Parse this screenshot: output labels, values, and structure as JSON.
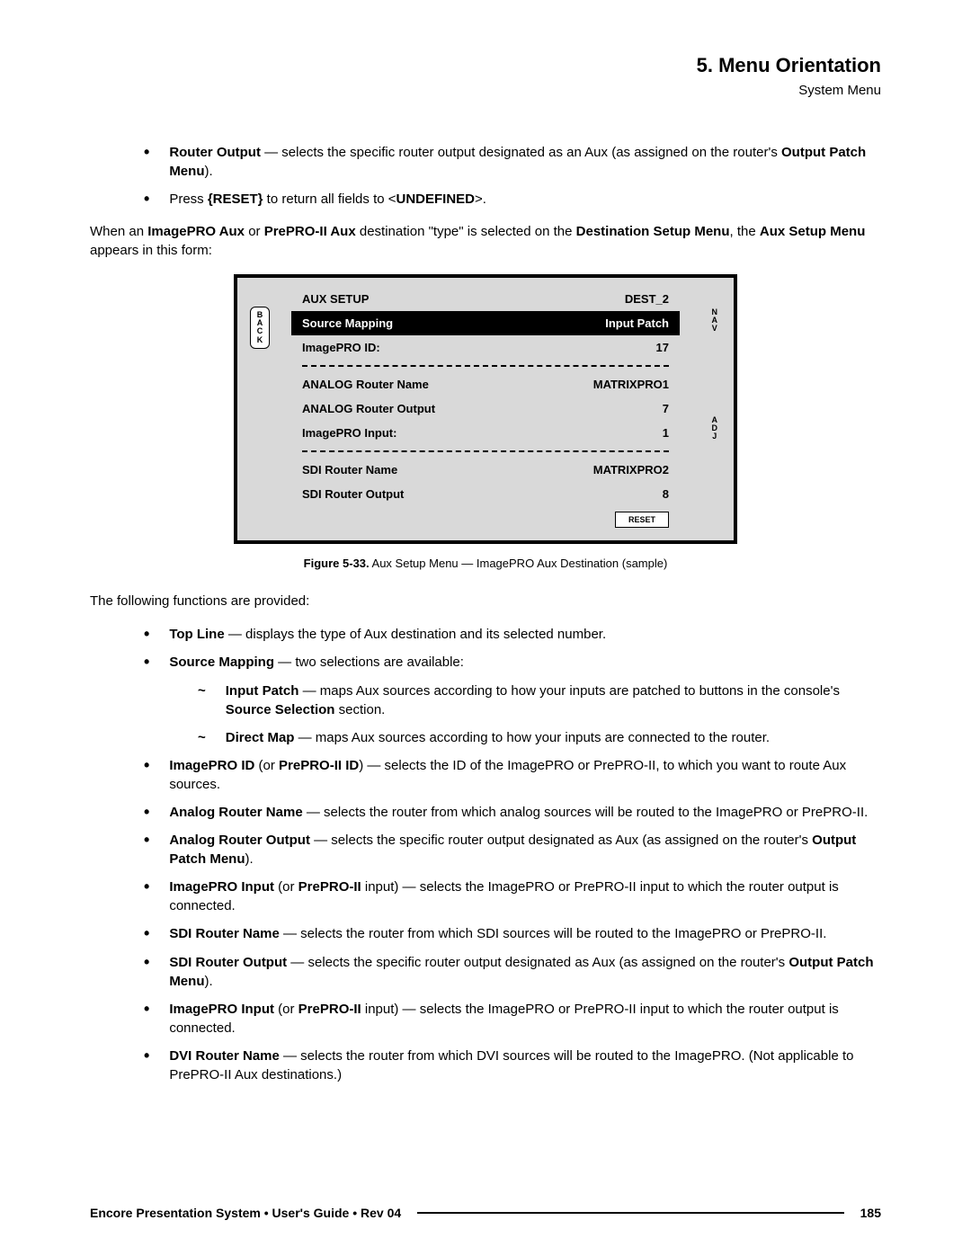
{
  "header": {
    "chapter": "5.  Menu Orientation",
    "section": "System Menu"
  },
  "intro_bullets": [
    {
      "bold1": "Router Output",
      "text1": " — selects the specific router output designated as an Aux (as assigned on the router's ",
      "bold2": "Output Patch Menu",
      "text2": ")."
    },
    {
      "plain_pre": "Press ",
      "bold1": "{RESET}",
      "text1": " to return all fields to <",
      "bold2": "UNDEFINED",
      "text2": ">."
    }
  ],
  "intro_para": {
    "p1": "When an ",
    "b1": "ImagePRO Aux",
    "p2": " or ",
    "b2": "PrePRO-II Aux",
    "p3": " destination \"type\" is selected on the ",
    "b3": "Destination Setup Menu",
    "p4": ", the ",
    "b4": "Aux Setup Menu",
    "p5": " appears in this form:"
  },
  "menu": {
    "back": "B\nA\nC\nK",
    "nav": "N\nA\nV",
    "adj": "A\nD\nJ",
    "rows": [
      {
        "left": "AUX SETUP",
        "right": "DEST_2",
        "inverted": false
      },
      {
        "left": "Source Mapping",
        "right": "Input Patch",
        "inverted": true
      },
      {
        "left": "ImagePRO ID:",
        "right": "17",
        "inverted": false
      },
      {
        "divider": true
      },
      {
        "left": "ANALOG Router Name",
        "right": "MATRIXPRO1",
        "inverted": false
      },
      {
        "left": "ANALOG Router Output",
        "right": "7",
        "inverted": false
      },
      {
        "left": "ImagePRO Input:",
        "right": "1",
        "inverted": false
      },
      {
        "divider": true
      },
      {
        "left": "SDI Router Name",
        "right": "MATRIXPRO2",
        "inverted": false
      },
      {
        "left": "SDI Router Output",
        "right": "8",
        "inverted": false
      }
    ],
    "reset": "RESET"
  },
  "figure_caption": {
    "b": "Figure 5-33.",
    "t": "  Aux Setup Menu — ImagePRO Aux Destination (sample)"
  },
  "functions_lead": "The following functions are provided:",
  "func_bullets": [
    {
      "b1": "Top Line",
      "t1": " — displays the type of Aux destination and its selected number."
    },
    {
      "b1": "Source Mapping",
      "t1": " — two selections are available:",
      "subs": [
        {
          "b1": "Input Patch",
          "t1": " — maps Aux sources according to how your inputs are patched to buttons in the console's ",
          "b2": "Source Selection",
          "t2": " section."
        },
        {
          "b1": "Direct Map",
          "t1": " — maps Aux sources according to how your inputs are connected to the router."
        }
      ]
    },
    {
      "b1": "ImagePRO ID",
      "t1": " (or ",
      "b2": "PrePRO-II ID",
      "t2": ") — selects the ID of the ImagePRO or PrePRO-II, to which you want to route Aux sources."
    },
    {
      "b1": "Analog Router Name",
      "t1": " — selects the router from which analog sources will be routed to the ImagePRO or PrePRO-II."
    },
    {
      "b1": "Analog Router Output",
      "t1": " — selects the specific router output designated as Aux (as assigned on the router's ",
      "b2": "Output Patch Menu",
      "t2": ")."
    },
    {
      "b1": "ImagePRO Input",
      "t1": " (or ",
      "b2": "PrePRO-II",
      "t2": " input) — selects the ImagePRO or PrePRO-II input to which the router output is connected."
    },
    {
      "b1": "SDI Router Name",
      "t1": " — selects the router from which SDI sources will be routed to the ImagePRO or PrePRO-II."
    },
    {
      "b1": "SDI Router Output",
      "t1": " — selects the specific router output designated as Aux (as assigned on the router's ",
      "b2": "Output Patch Menu",
      "t2": ")."
    },
    {
      "b1": "ImagePRO Input",
      "t1": " (or ",
      "b2": "PrePRO-II",
      "t2": " input) — selects the ImagePRO or PrePRO-II input to which the router output is connected."
    },
    {
      "b1": "DVI Router Name",
      "t1": " — selects the router from which DVI sources will be routed to the ImagePRO.  (Not applicable to PrePRO-II Aux destinations.)"
    }
  ],
  "footer": {
    "text": "Encore Presentation System  •  User's Guide  •  Rev 04",
    "page": "185"
  },
  "style": {
    "page_bg": "#ffffff",
    "menu_bg": "#d9d9d9",
    "border_color": "#000000",
    "inv_bg": "#000000",
    "inv_fg": "#ffffff"
  }
}
